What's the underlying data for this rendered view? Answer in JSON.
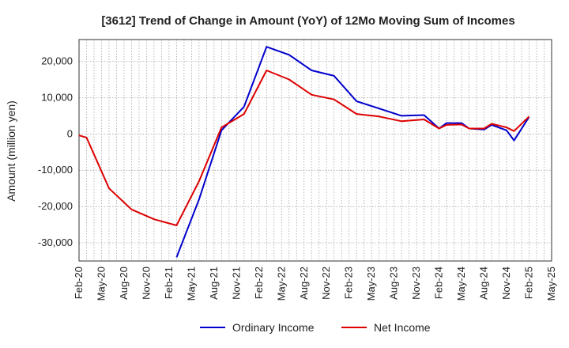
{
  "chart_data": {
    "type": "line",
    "title": "[3612]  Trend of Change in Amount (YoY) of 12Mo Moving Sum of Incomes",
    "ylabel": "Amount (million yen)",
    "xlabel": "",
    "ylim": [
      -35000,
      26000
    ],
    "yticks": [
      20000,
      10000,
      0,
      -10000,
      -20000,
      -30000
    ],
    "ytick_labels": [
      "20,000",
      "10,000",
      "0",
      "-10,000",
      "-20,000",
      "-30,000"
    ],
    "xtick_labels": [
      "Feb-20",
      "May-20",
      "Aug-20",
      "Nov-20",
      "Feb-21",
      "May-21",
      "Aug-21",
      "Nov-21",
      "Feb-22",
      "May-22",
      "Aug-22",
      "Nov-22",
      "Feb-23",
      "May-23",
      "Aug-23",
      "Nov-23",
      "Feb-24",
      "May-24",
      "Aug-24",
      "Nov-24",
      "Feb-25",
      "May-25"
    ],
    "grid": true,
    "legend": "bottom-center",
    "series": [
      {
        "name": "Ordinary Income",
        "color": "#0000cc",
        "points": [
          [
            13,
            -34000
          ],
          [
            16,
            -18000
          ],
          [
            19,
            1000
          ],
          [
            22,
            7500
          ],
          [
            25,
            24000
          ],
          [
            28,
            21800
          ],
          [
            31,
            17500
          ],
          [
            34,
            16000
          ],
          [
            37,
            9000
          ],
          [
            40,
            7000
          ],
          [
            43,
            5000
          ],
          [
            46,
            5200
          ],
          [
            48,
            1500
          ],
          [
            49,
            3000
          ],
          [
            51,
            3000
          ],
          [
            52,
            1500
          ],
          [
            54,
            1200
          ],
          [
            55,
            2500
          ],
          [
            57,
            1000
          ],
          [
            58,
            -1800
          ],
          [
            60,
            4700
          ]
        ]
      },
      {
        "name": "Net Income",
        "color": "#dd0000",
        "points": [
          [
            0,
            -400
          ],
          [
            1,
            -1000
          ],
          [
            4,
            -15000
          ],
          [
            7,
            -20800
          ],
          [
            10,
            -23500
          ],
          [
            13,
            -25200
          ],
          [
            16,
            -13000
          ],
          [
            19,
            1800
          ],
          [
            22,
            5500
          ],
          [
            25,
            17500
          ],
          [
            28,
            15000
          ],
          [
            31,
            10800
          ],
          [
            34,
            9500
          ],
          [
            37,
            5500
          ],
          [
            40,
            4800
          ],
          [
            43,
            3500
          ],
          [
            46,
            4000
          ],
          [
            48,
            1500
          ],
          [
            49,
            2500
          ],
          [
            51,
            2600
          ],
          [
            52,
            1500
          ],
          [
            54,
            1500
          ],
          [
            55,
            2800
          ],
          [
            57,
            1800
          ],
          [
            58,
            800
          ],
          [
            60,
            4800
          ]
        ]
      }
    ]
  }
}
